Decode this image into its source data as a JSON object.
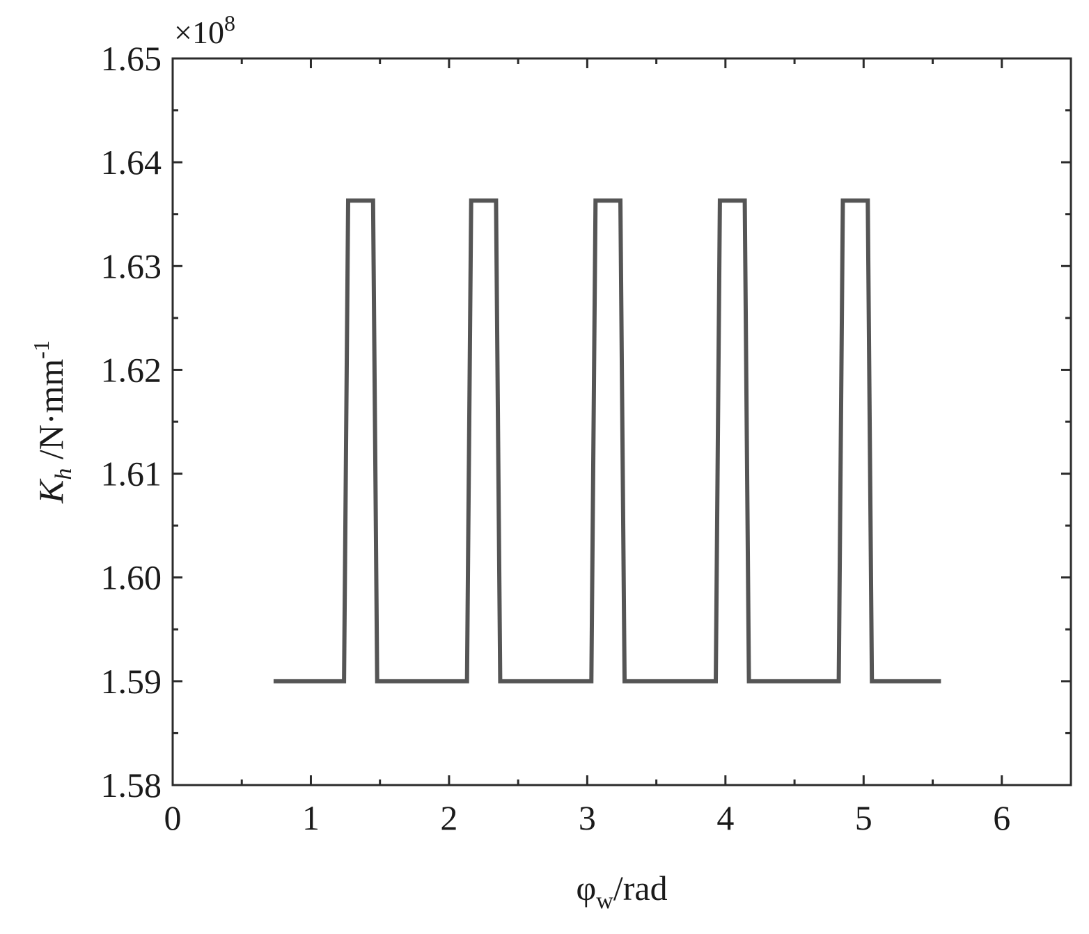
{
  "chart_data": {
    "type": "line",
    "xlabel": {
      "main": "φ",
      "sub": "w",
      "rest": "/rad"
    },
    "ylabel": {
      "main": "K",
      "sub": "h",
      "rest": " /N·mm",
      "sup": "-1"
    },
    "y_multiplier": {
      "base": "×10",
      "exp": "8"
    },
    "xlim": [
      0,
      6.5
    ],
    "ylim": [
      1.58,
      1.65
    ],
    "x_ticks": [
      0,
      1,
      2,
      3,
      4,
      5,
      6
    ],
    "x_tick_labels": [
      "0",
      "1",
      "2",
      "3",
      "4",
      "5",
      "6"
    ],
    "x_minor_ticks": [
      0.5,
      1.5,
      2.5,
      3.5,
      4.5,
      5.5
    ],
    "y_ticks": [
      1.58,
      1.59,
      1.6,
      1.61,
      1.62,
      1.63,
      1.64,
      1.65
    ],
    "y_tick_labels": [
      "1.58",
      "1.59",
      "1.60",
      "1.61",
      "1.62",
      "1.63",
      "1.64",
      "1.65"
    ],
    "y_minor_ticks": [
      1.585,
      1.595,
      1.605,
      1.615,
      1.625,
      1.635,
      1.645
    ],
    "grid": false,
    "color": "#555555",
    "series": [
      {
        "x": [
          0.73,
          1.24,
          1.27,
          1.45,
          1.48,
          2.13,
          2.16,
          2.34,
          2.37,
          3.03,
          3.06,
          3.24,
          3.27,
          3.93,
          3.96,
          4.14,
          4.17,
          4.82,
          4.85,
          5.03,
          5.06,
          5.56
        ],
        "y": [
          1.59,
          1.59,
          1.6363,
          1.6363,
          1.59,
          1.59,
          1.6363,
          1.6363,
          1.59,
          1.59,
          1.6363,
          1.6363,
          1.59,
          1.59,
          1.6363,
          1.6363,
          1.59,
          1.59,
          1.6363,
          1.6363,
          1.59,
          1.59
        ]
      }
    ]
  }
}
